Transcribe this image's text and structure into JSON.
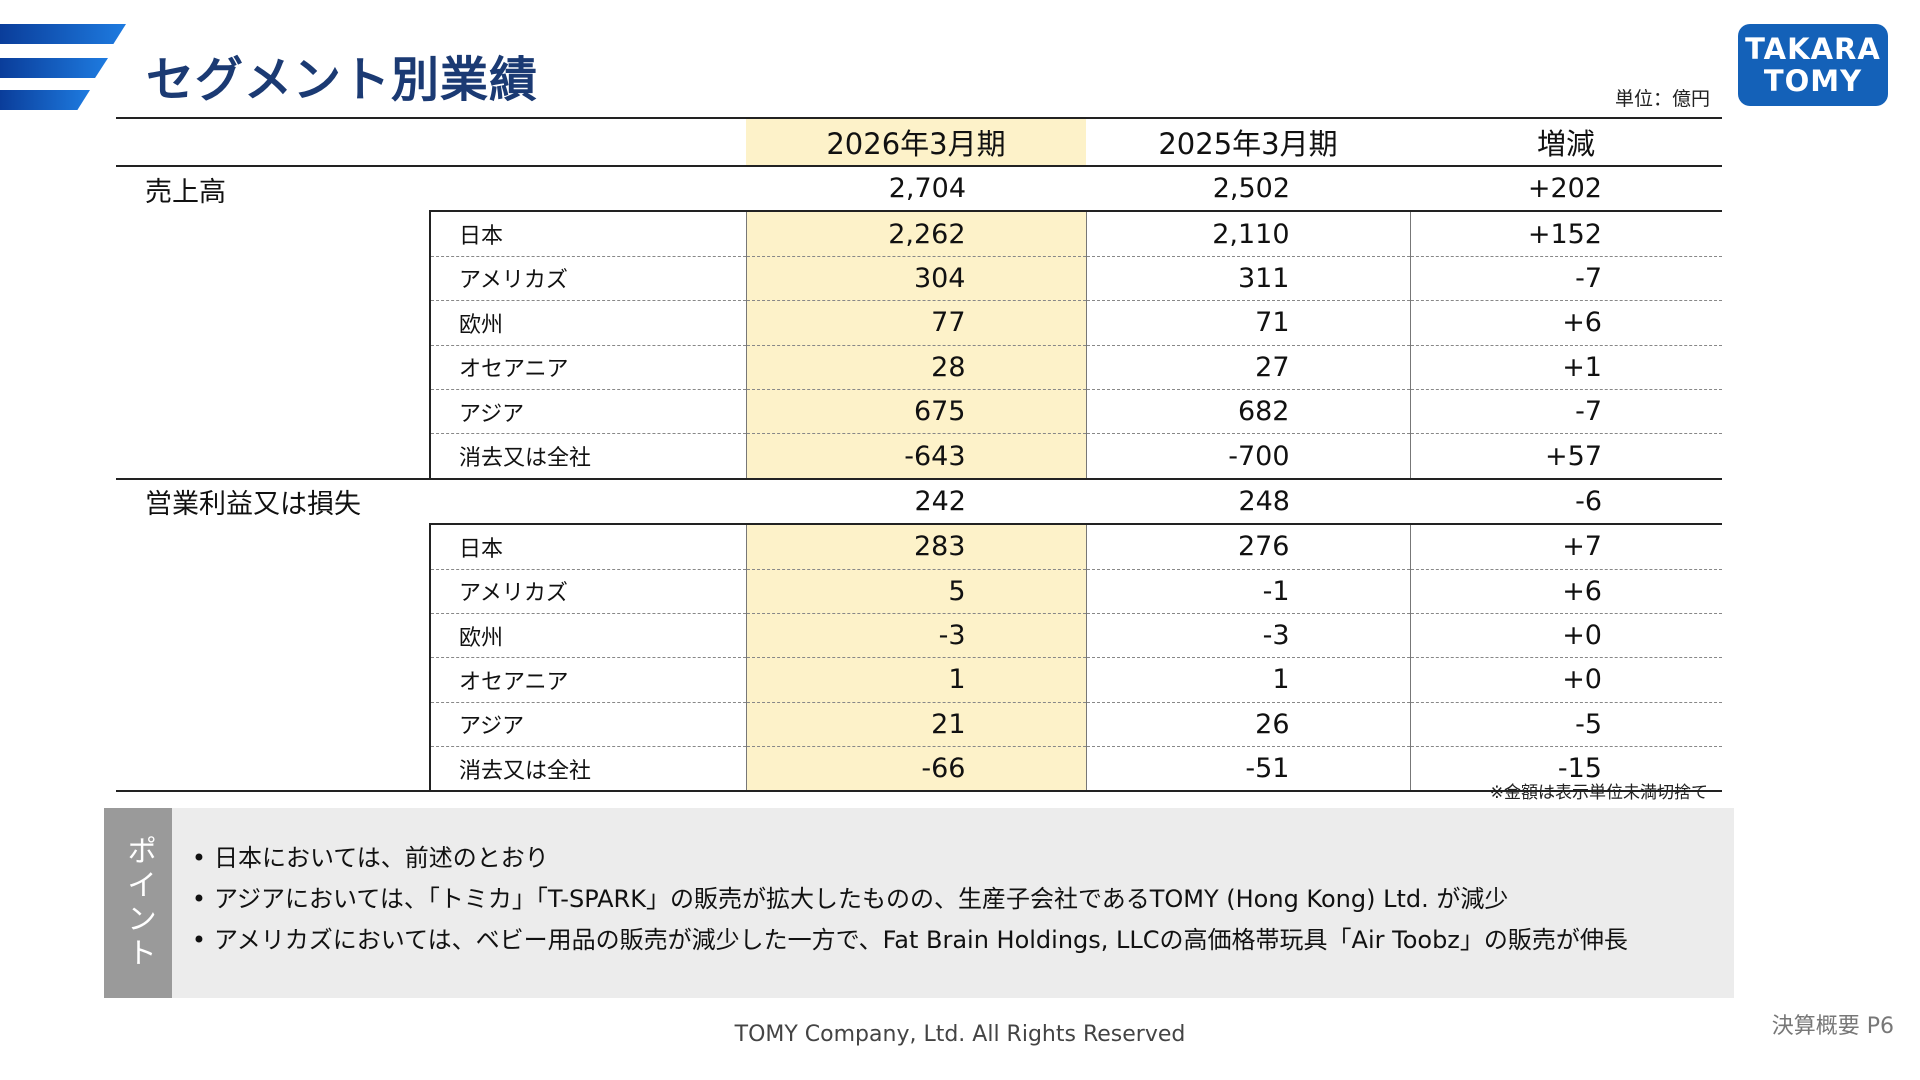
{
  "title": "セグメント別業績",
  "unit": "単位：億円",
  "logo": {
    "line1": "TAKARA",
    "line2": "TOMY"
  },
  "table": {
    "columns": [
      "2026年3月期",
      "2025年3月期",
      "増減"
    ],
    "sections": [
      {
        "label": "売上高",
        "total": [
          "2,704",
          "2,502",
          "+202"
        ],
        "rows": [
          {
            "label": "日本",
            "values": [
              "2,262",
              "2,110",
              "+152"
            ]
          },
          {
            "label": "アメリカズ",
            "values": [
              "304",
              "311",
              "-7"
            ]
          },
          {
            "label": "欧州",
            "values": [
              "77",
              "71",
              "+6"
            ]
          },
          {
            "label": "オセアニア",
            "values": [
              "28",
              "27",
              "+1"
            ]
          },
          {
            "label": "アジア",
            "values": [
              "675",
              "682",
              "-7"
            ]
          },
          {
            "label": "消去又は全社",
            "values": [
              "-643",
              "-700",
              "+57"
            ]
          }
        ]
      },
      {
        "label": "営業利益又は損失",
        "total": [
          "242",
          "248",
          "-6"
        ],
        "rows": [
          {
            "label": "日本",
            "values": [
              "283",
              "276",
              "+7"
            ]
          },
          {
            "label": "アメリカズ",
            "values": [
              "5",
              "-1",
              "+6"
            ]
          },
          {
            "label": "欧州",
            "values": [
              "-3",
              "-3",
              "+0"
            ]
          },
          {
            "label": "オセアニア",
            "values": [
              "1",
              "1",
              "+0"
            ]
          },
          {
            "label": "アジア",
            "values": [
              "21",
              "26",
              "-5"
            ]
          },
          {
            "label": "消去又は全社",
            "values": [
              "-66",
              "-51",
              "-15"
            ]
          }
        ]
      }
    ]
  },
  "note": "※金額は表示単位未満切捨て",
  "points": {
    "tab_label": "ポイント",
    "items": [
      "日本においては、前述のとおり",
      "アジアにおいては、「トミカ」「T-SPARK」の販売が拡大したものの、生産子会社であるTOMY (Hong Kong) Ltd. が減少",
      "アメリカズにおいては、ベビー用品の販売が減少した一方で、Fat Brain Holdings, LLCの高価格帯玩具「Air Toobz」の販売が伸長"
    ]
  },
  "footer": {
    "copyright": "TOMY Company, Ltd. All Rights Reserved",
    "page": "決算概要 P6"
  }
}
